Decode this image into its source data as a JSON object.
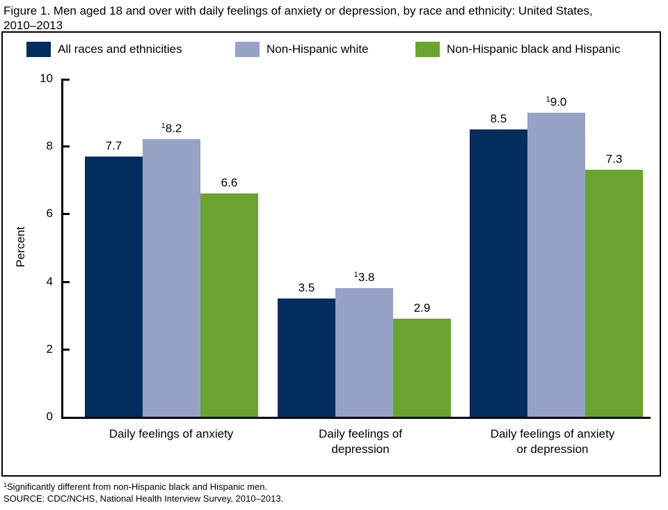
{
  "title": {
    "line1": "Figure 1. Men aged 18 and over with daily feelings of anxiety or depression, by race and ethnicity: United States,",
    "line2": "2010–2013"
  },
  "chart_data": {
    "type": "bar",
    "title": "Men aged 18 and over with daily feelings of anxiety or depression, by race and ethnicity: United States, 2010–2013",
    "ylabel": "Percent",
    "xlabel": "",
    "ylim": [
      0,
      10
    ],
    "yticks": [
      0,
      2,
      4,
      6,
      8,
      10
    ],
    "grid": false,
    "legend_position": "top",
    "categories": [
      [
        "Daily feelings of anxiety"
      ],
      [
        "Daily feelings of",
        "depression"
      ],
      [
        "Daily feelings of anxiety",
        "or depression"
      ]
    ],
    "series": [
      {
        "name": "All races and ethnicities",
        "color": "#022D5C",
        "values": [
          7.7,
          3.5,
          8.5
        ],
        "value_labels": [
          "7.7",
          "3.5",
          "8.5"
        ],
        "sup_markers": [
          "",
          "",
          ""
        ]
      },
      {
        "name": "Non-Hispanic white",
        "color": "#96A3C6",
        "values": [
          8.2,
          3.8,
          9.0
        ],
        "value_labels": [
          "8.2",
          "3.8",
          "9.0"
        ],
        "sup_markers": [
          "1",
          "1",
          "1"
        ]
      },
      {
        "name": "Non-Hispanic black and Hispanic",
        "color": "#6AA32F",
        "values": [
          6.6,
          2.9,
          7.3
        ],
        "value_labels": [
          "6.6",
          "2.9",
          "7.3"
        ],
        "sup_markers": [
          "",
          "",
          ""
        ]
      }
    ]
  },
  "footnotes": {
    "note_sup": "1",
    "note": "Significantly different from non-Hispanic black and Hispanic men.",
    "source": "SOURCE: CDC/NCHS, National Health Interview Survey, 2010–2013."
  }
}
